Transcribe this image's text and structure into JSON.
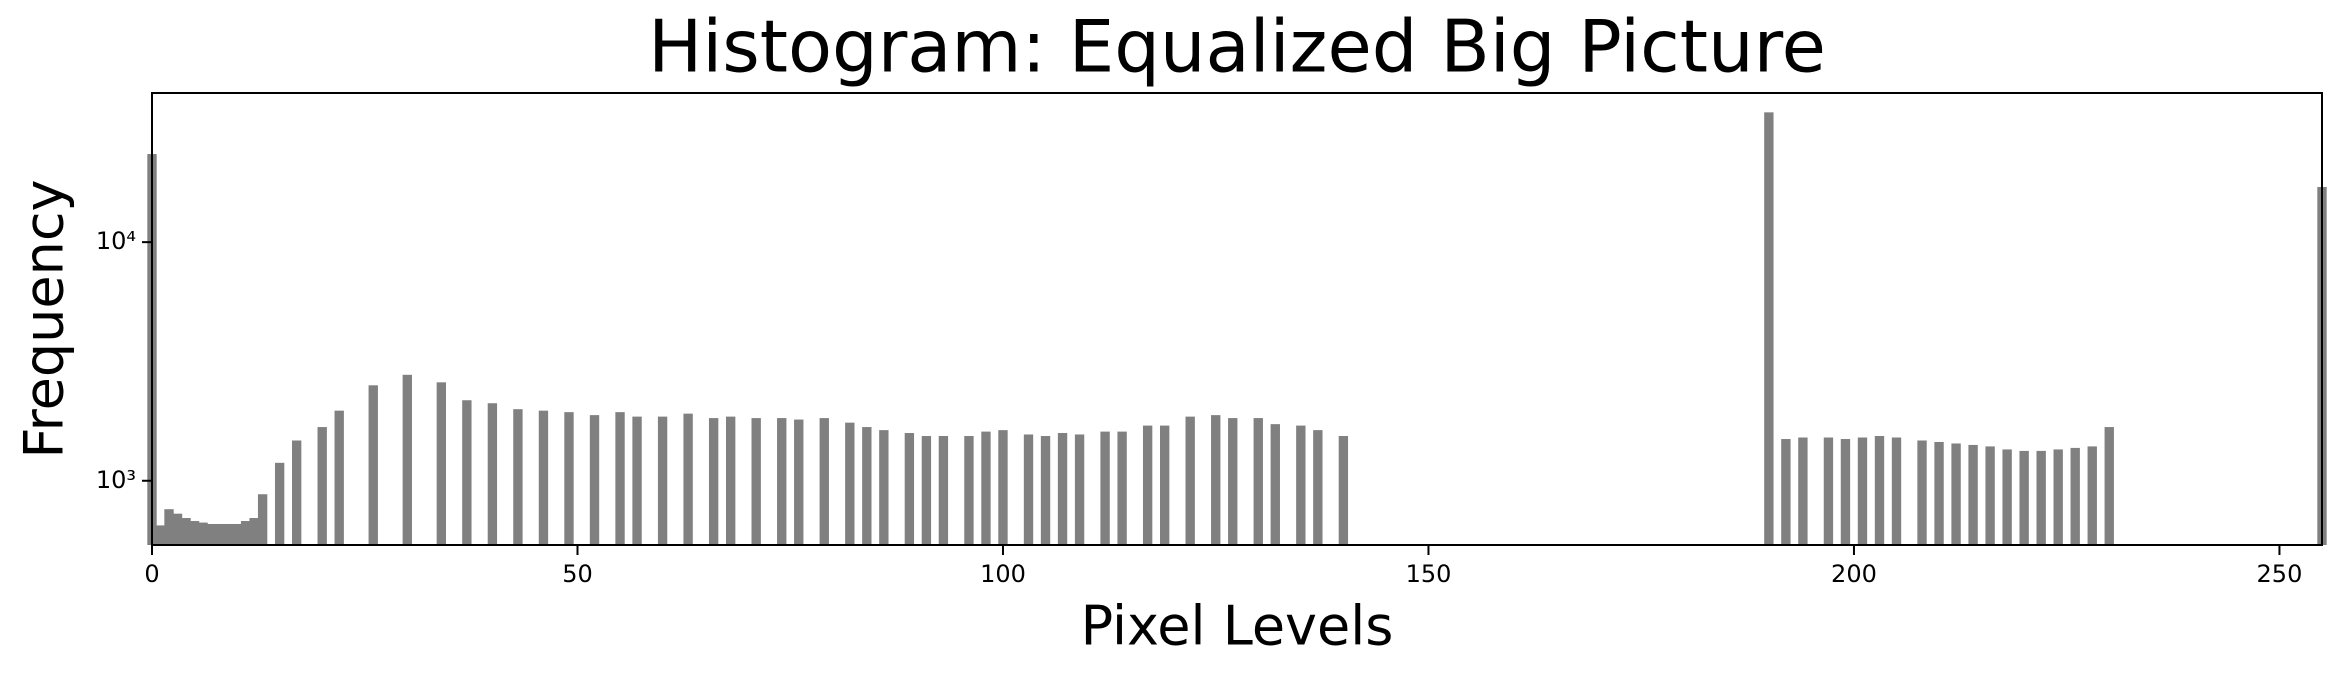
{
  "chart_data": {
    "type": "bar",
    "title": "Histogram: Equalized Big Picture",
    "xlabel": "Pixel Levels",
    "ylabel": "Frequency",
    "color": "#808080",
    "log_y": true,
    "x": [
      0,
      1,
      2,
      3,
      4,
      5,
      6,
      7,
      8,
      9,
      10,
      11,
      12,
      13,
      15,
      17,
      20,
      22,
      26,
      30,
      34,
      37,
      40,
      43,
      46,
      49,
      52,
      55,
      57,
      60,
      63,
      66,
      68,
      71,
      74,
      76,
      79,
      82,
      84,
      86,
      89,
      91,
      93,
      96,
      98,
      100,
      103,
      105,
      107,
      109,
      112,
      114,
      117,
      119,
      122,
      125,
      127,
      130,
      132,
      135,
      137,
      140,
      190,
      192,
      194,
      197,
      199,
      201,
      203,
      205,
      208,
      210,
      212,
      214,
      216,
      218,
      220,
      222,
      224,
      226,
      228,
      230,
      255
    ],
    "values": [
      23400,
      650,
      760,
      728,
      698,
      678,
      668,
      659,
      659,
      659,
      659,
      678,
      698,
      878,
      1189,
      1475,
      1679,
      1967,
      2512,
      2780,
      2585,
      2175,
      2113,
      1995,
      1967,
      1939,
      1884,
      1939,
      1857,
      1857,
      1911,
      1831,
      1857,
      1831,
      1831,
      1805,
      1831,
      1752,
      1679,
      1630,
      1585,
      1540,
      1540,
      1540,
      1607,
      1630,
      1563,
      1540,
      1585,
      1563,
      1607,
      1607,
      1703,
      1703,
      1857,
      1884,
      1831,
      1831,
      1727,
      1703,
      1630,
      1540,
      34990,
      1496,
      1518,
      1518,
      1496,
      1518,
      1540,
      1518,
      1475,
      1454,
      1433,
      1413,
      1393,
      1353,
      1334,
      1334,
      1353,
      1373,
      1393,
      1679,
      17020
    ],
    "xlim": [
      0,
      255
    ],
    "xticks": [
      0,
      50,
      100,
      150,
      200,
      250
    ],
    "ylim": [
      538,
      42170
    ],
    "yticks": [
      {
        "value": 1000,
        "label": "10³"
      },
      {
        "value": 10000,
        "label": "10⁴"
      }
    ]
  }
}
